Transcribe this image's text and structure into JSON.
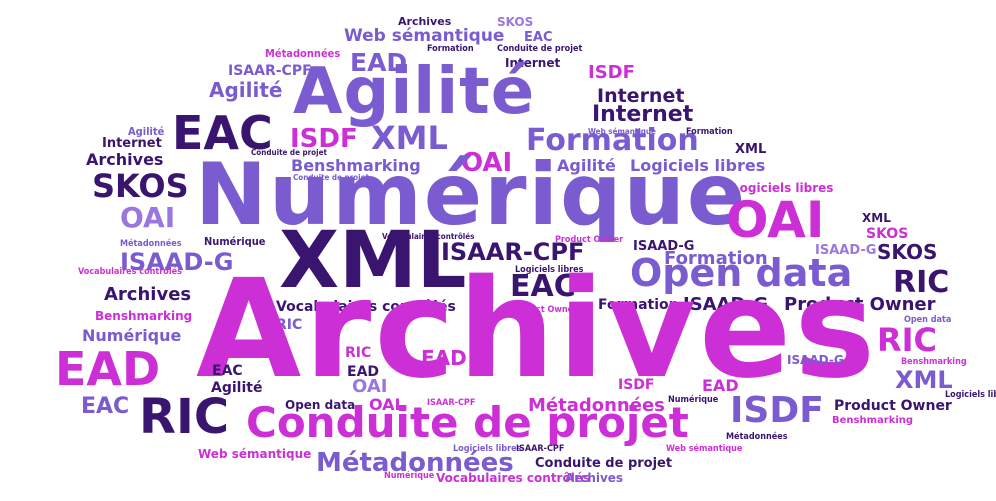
{
  "colors": {
    "magenta": "#cc2fd6",
    "violet": "#7a5bd0",
    "lavender": "#9a77e0",
    "deep_purple": "#3a1570"
  },
  "words": [
    "Archives",
    "Numérique",
    "Agilité",
    "XML",
    "Conduite de projet",
    "Open data",
    "RIC",
    "EAC",
    "EAD",
    "OAI",
    "ISDF",
    "SKOS",
    "Métadonnées",
    "Formation",
    "Internet",
    "ISAAR-CPF",
    "ISAAD-G",
    "Vocabulaires contrôlés",
    "Product Owner",
    "Web sémantique",
    "Logiciels libres",
    "Benshmarking"
  ]
}
